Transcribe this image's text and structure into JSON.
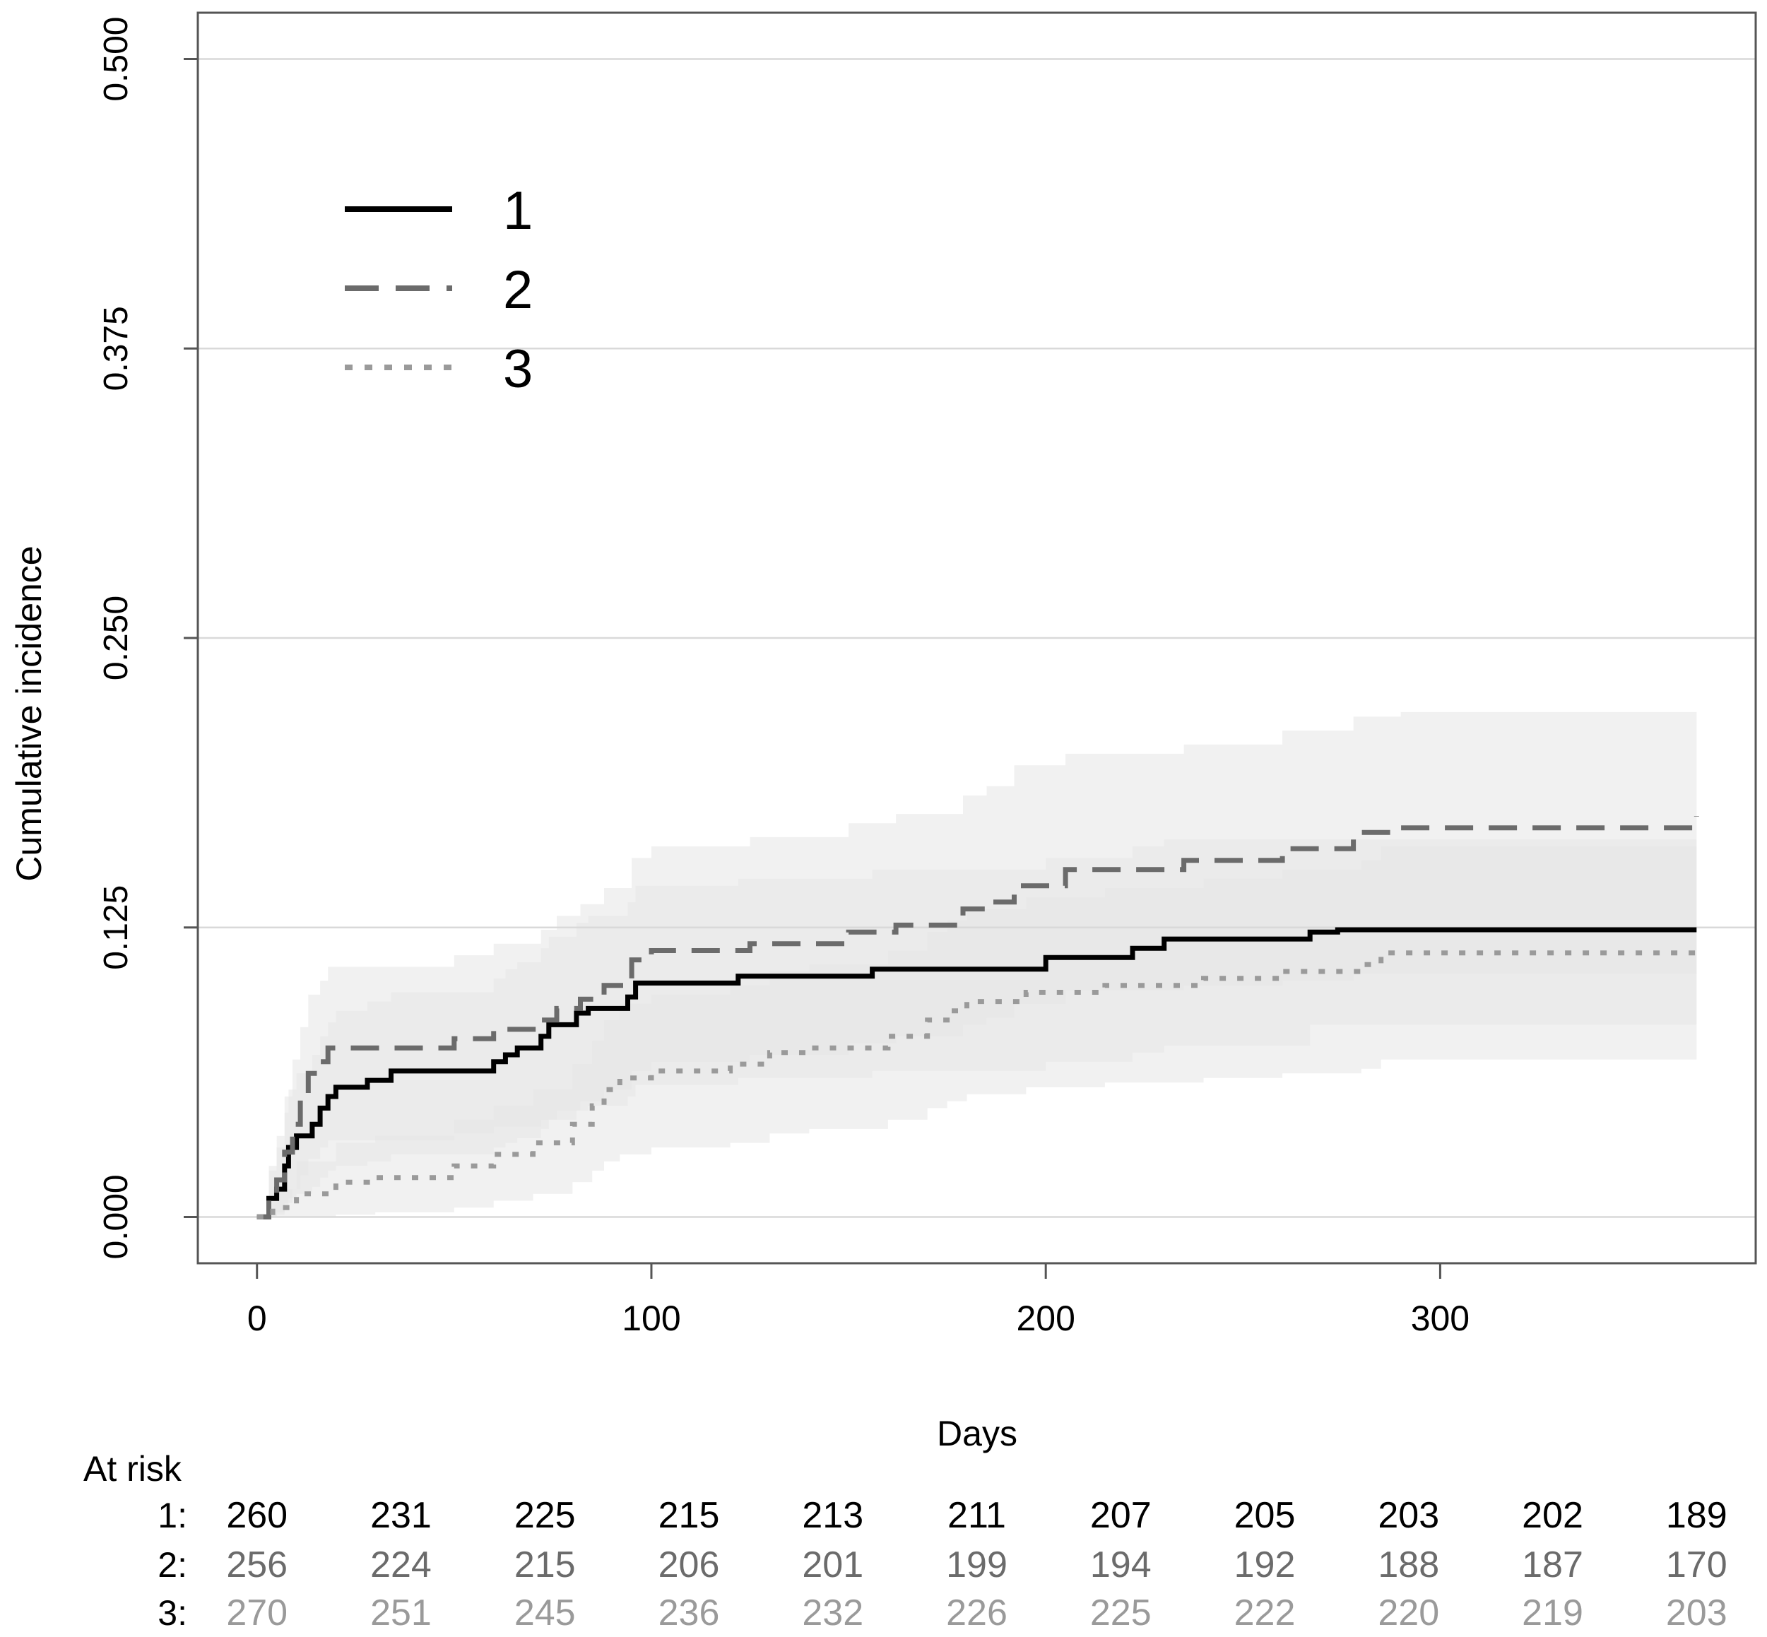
{
  "chart_data": {
    "type": "line",
    "subtype": "cumulative-incidence-step",
    "xlabel": "Days",
    "ylabel": "Cumulative incidence",
    "xlim": [
      -15,
      380
    ],
    "ylim": [
      -0.02,
      0.52
    ],
    "x_ticks": [
      0,
      100,
      200,
      300
    ],
    "x_tick_labels": [
      "0",
      "100",
      "200",
      "300"
    ],
    "y_ticks": [
      0.0,
      0.125,
      0.25,
      0.375,
      0.5
    ],
    "y_tick_labels": [
      "0.000",
      "0.125",
      "0.250",
      "0.375",
      "0.500"
    ],
    "grid": "horizontal",
    "legend": {
      "position": "top-left",
      "entries": [
        {
          "label": "1",
          "style": "solid"
        },
        {
          "label": "2",
          "style": "dashed"
        },
        {
          "label": "3",
          "style": "dotted"
        }
      ]
    },
    "colors": {
      "series1": "#000000",
      "series2": "#6b6b6b",
      "series3": "#9a9a9a",
      "band_light": "#e6e6e6",
      "band_dark": "#cfcfcf",
      "grid": "#d9d9d9"
    },
    "series": [
      {
        "name": "1",
        "style": "solid",
        "x": [
          0,
          3,
          5,
          7,
          8,
          10,
          14,
          16,
          18,
          20,
          28,
          34,
          60,
          63,
          66,
          72,
          74,
          81,
          84,
          94,
          96,
          122,
          156,
          200,
          222,
          230,
          267,
          274,
          365
        ],
        "y": [
          0.0,
          0.008,
          0.012,
          0.022,
          0.03,
          0.035,
          0.04,
          0.047,
          0.052,
          0.056,
          0.059,
          0.063,
          0.067,
          0.07,
          0.073,
          0.078,
          0.083,
          0.088,
          0.09,
          0.095,
          0.101,
          0.104,
          0.107,
          0.112,
          0.116,
          0.12,
          0.123,
          0.124,
          0.124
        ],
        "lower": [
          0.0,
          0.0,
          0.001,
          0.004,
          0.008,
          0.01,
          0.013,
          0.017,
          0.02,
          0.022,
          0.024,
          0.027,
          0.03,
          0.032,
          0.034,
          0.038,
          0.042,
          0.046,
          0.048,
          0.052,
          0.057,
          0.06,
          0.063,
          0.067,
          0.071,
          0.074,
          0.083,
          0.083,
          0.083
        ],
        "upper": [
          0.0,
          0.02,
          0.03,
          0.045,
          0.055,
          0.062,
          0.07,
          0.078,
          0.084,
          0.089,
          0.093,
          0.097,
          0.103,
          0.107,
          0.11,
          0.116,
          0.121,
          0.127,
          0.13,
          0.136,
          0.143,
          0.146,
          0.15,
          0.155,
          0.16,
          0.163,
          0.163,
          0.163,
          0.163
        ]
      },
      {
        "name": "2",
        "style": "dashed",
        "x": [
          0,
          3,
          5,
          7,
          9,
          11,
          13,
          16,
          18,
          50,
          60,
          72,
          76,
          82,
          88,
          95,
          100,
          125,
          150,
          162,
          179,
          185,
          192,
          205,
          235,
          260,
          278,
          290,
          365
        ],
        "y": [
          0.0,
          0.008,
          0.016,
          0.028,
          0.04,
          0.052,
          0.062,
          0.067,
          0.073,
          0.077,
          0.081,
          0.085,
          0.09,
          0.094,
          0.1,
          0.111,
          0.115,
          0.118,
          0.123,
          0.126,
          0.133,
          0.136,
          0.143,
          0.15,
          0.154,
          0.159,
          0.166,
          0.168,
          0.173
        ],
        "lower": [
          0.0,
          0.0,
          0.002,
          0.006,
          0.012,
          0.018,
          0.025,
          0.03,
          0.033,
          0.036,
          0.039,
          0.042,
          0.046,
          0.05,
          0.055,
          0.063,
          0.067,
          0.07,
          0.075,
          0.078,
          0.083,
          0.086,
          0.092,
          0.098,
          0.1,
          0.102,
          0.105,
          0.105,
          0.105
        ],
        "upper": [
          0.0,
          0.022,
          0.035,
          0.052,
          0.068,
          0.082,
          0.096,
          0.102,
          0.108,
          0.113,
          0.118,
          0.124,
          0.13,
          0.135,
          0.142,
          0.155,
          0.16,
          0.164,
          0.17,
          0.174,
          0.182,
          0.186,
          0.195,
          0.2,
          0.204,
          0.21,
          0.216,
          0.218,
          0.222
        ]
      },
      {
        "name": "3",
        "style": "dotted",
        "x": [
          0,
          4,
          10,
          20,
          30,
          50,
          60,
          70,
          80,
          85,
          88,
          92,
          100,
          120,
          130,
          140,
          160,
          170,
          175,
          180,
          195,
          215,
          240,
          260,
          280,
          285,
          365
        ],
        "y": [
          0.0,
          0.004,
          0.01,
          0.015,
          0.017,
          0.022,
          0.027,
          0.032,
          0.04,
          0.048,
          0.055,
          0.06,
          0.063,
          0.066,
          0.071,
          0.073,
          0.078,
          0.085,
          0.089,
          0.093,
          0.097,
          0.1,
          0.103,
          0.106,
          0.109,
          0.114,
          0.114
        ],
        "lower": [
          0.0,
          0.0,
          0.0,
          0.001,
          0.002,
          0.004,
          0.007,
          0.01,
          0.015,
          0.02,
          0.024,
          0.027,
          0.03,
          0.032,
          0.036,
          0.038,
          0.042,
          0.047,
          0.05,
          0.053,
          0.056,
          0.058,
          0.06,
          0.062,
          0.064,
          0.068,
          0.068
        ],
        "upper": [
          0.0,
          0.012,
          0.024,
          0.032,
          0.035,
          0.042,
          0.048,
          0.055,
          0.066,
          0.076,
          0.085,
          0.092,
          0.096,
          0.1,
          0.106,
          0.109,
          0.115,
          0.123,
          0.128,
          0.133,
          0.138,
          0.142,
          0.146,
          0.15,
          0.154,
          0.16,
          0.16
        ]
      }
    ],
    "at_risk": {
      "title": "At risk",
      "times": [
        0,
        36.5,
        73,
        109.5,
        146,
        182.5,
        219,
        255.5,
        292,
        328.5,
        365
      ],
      "rows": [
        {
          "label": "1:",
          "values": [
            "260",
            "231",
            "225",
            "215",
            "213",
            "211",
            "207",
            "205",
            "203",
            "202",
            "189"
          ]
        },
        {
          "label": "2:",
          "values": [
            "256",
            "224",
            "215",
            "206",
            "201",
            "199",
            "194",
            "192",
            "188",
            "187",
            "170"
          ]
        },
        {
          "label": "3:",
          "values": [
            "270",
            "251",
            "245",
            "236",
            "232",
            "226",
            "225",
            "222",
            "220",
            "219",
            "203"
          ]
        }
      ]
    }
  }
}
